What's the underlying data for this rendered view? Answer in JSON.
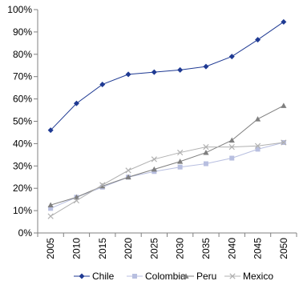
{
  "chart_data": {
    "type": "line",
    "title": "",
    "xlabel": "",
    "ylabel": "",
    "x": [
      "2005",
      "2010",
      "2015",
      "2020",
      "2025",
      "2030",
      "2035",
      "2040",
      "2045",
      "2050"
    ],
    "ylim": [
      0,
      100
    ],
    "yticks": [
      "0%",
      "10%",
      "20%",
      "30%",
      "40%",
      "50%",
      "60%",
      "70%",
      "80%",
      "90%",
      "100%"
    ],
    "grid": false,
    "legend": "bottom",
    "series": [
      {
        "name": "Chile",
        "color": "#1f3a93",
        "marker": "diamond",
        "values": [
          46,
          58,
          66.5,
          71,
          72,
          73,
          74.5,
          79,
          86.5,
          94.5
        ]
      },
      {
        "name": "Colombia",
        "color": "#b8bfe0",
        "marker": "square",
        "values": [
          11,
          16,
          20.5,
          25,
          27.5,
          29.5,
          31,
          33.5,
          37.5,
          40.5
        ]
      },
      {
        "name": "Peru",
        "color": "#7f7f7f",
        "marker": "triangle",
        "values": [
          12.5,
          16,
          21,
          25,
          28.5,
          32,
          36,
          41.5,
          51,
          57
        ]
      },
      {
        "name": "Mexico",
        "color": "#b0b0b0",
        "marker": "x",
        "values": [
          7.5,
          14.5,
          21.5,
          28,
          33,
          36,
          38.5,
          38.5,
          39,
          40.5
        ]
      }
    ]
  }
}
